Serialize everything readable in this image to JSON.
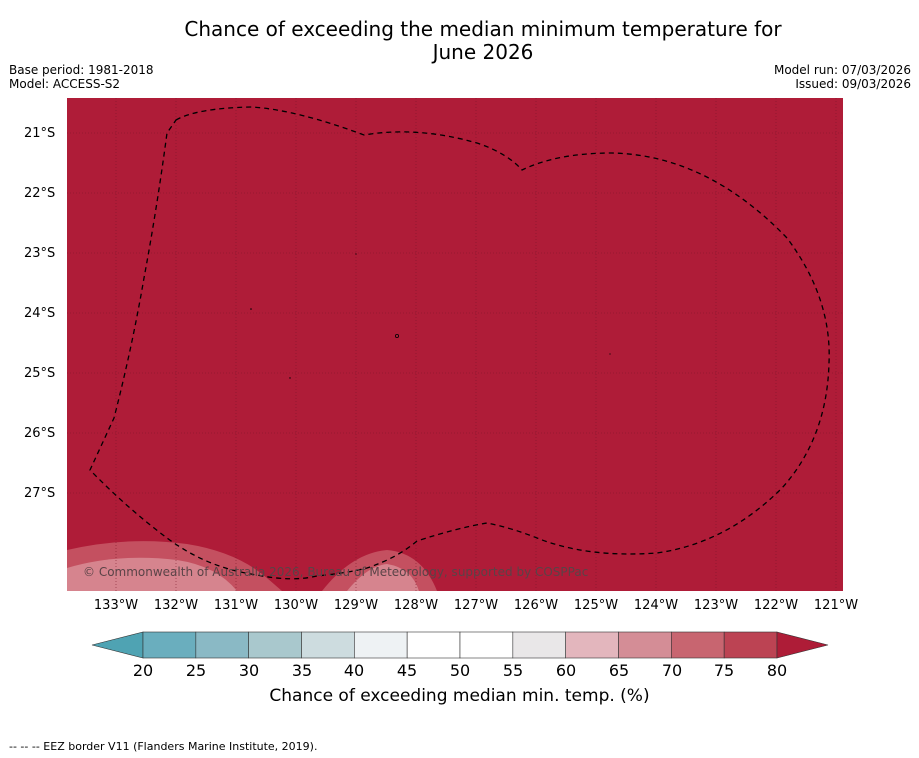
{
  "title_line1": "Chance of exceeding the median minimum temperature for",
  "title_line2": "June 2026",
  "base_period": "Base period: 1981-2018",
  "model": "Model: ACCESS-S2",
  "model_run": "Model run: 07/03/2026",
  "issued": "Issued: 09/03/2026",
  "credit": "© Commonwealth of Australia 2026, Bureau of Meteorology, supported by COSPPac",
  "lat_labels": [
    "21°S",
    "22°S",
    "23°S",
    "24°S",
    "25°S",
    "26°S",
    "27°S"
  ],
  "lon_labels": [
    "133°W",
    "132°W",
    "131°W",
    "130°W",
    "129°W",
    "128°W",
    "127°W",
    "126°W",
    "125°W",
    "124°W",
    "123°W",
    "122°W",
    "121°W"
  ],
  "colorbar": {
    "ticks": [
      "20",
      "25",
      "30",
      "35",
      "40",
      "45",
      "50",
      "55",
      "60",
      "65",
      "70",
      "75",
      "80"
    ],
    "colors": [
      "#6aaebe",
      "#8ab9c5",
      "#a9c8cd",
      "#cddcdf",
      "#eef2f4",
      "#ffffff",
      "#ffffff",
      "#e9e7e8",
      "#e3b6bd",
      "#d48d96",
      "#c86570",
      "#bc4353"
    ],
    "low_color": "#4fa3b3",
    "high_color": "#ae1c37",
    "title": "Chance of exceeding median min. temp. (%)"
  },
  "map_colors": {
    "dominant": "#af1c38",
    "grid": "#7a1428",
    "light_patch": "#d6848e",
    "mid_patch": "#c45060"
  },
  "footer": "--  --  -- EEZ border V11 (Flanders Marine Institute, 2019)."
}
